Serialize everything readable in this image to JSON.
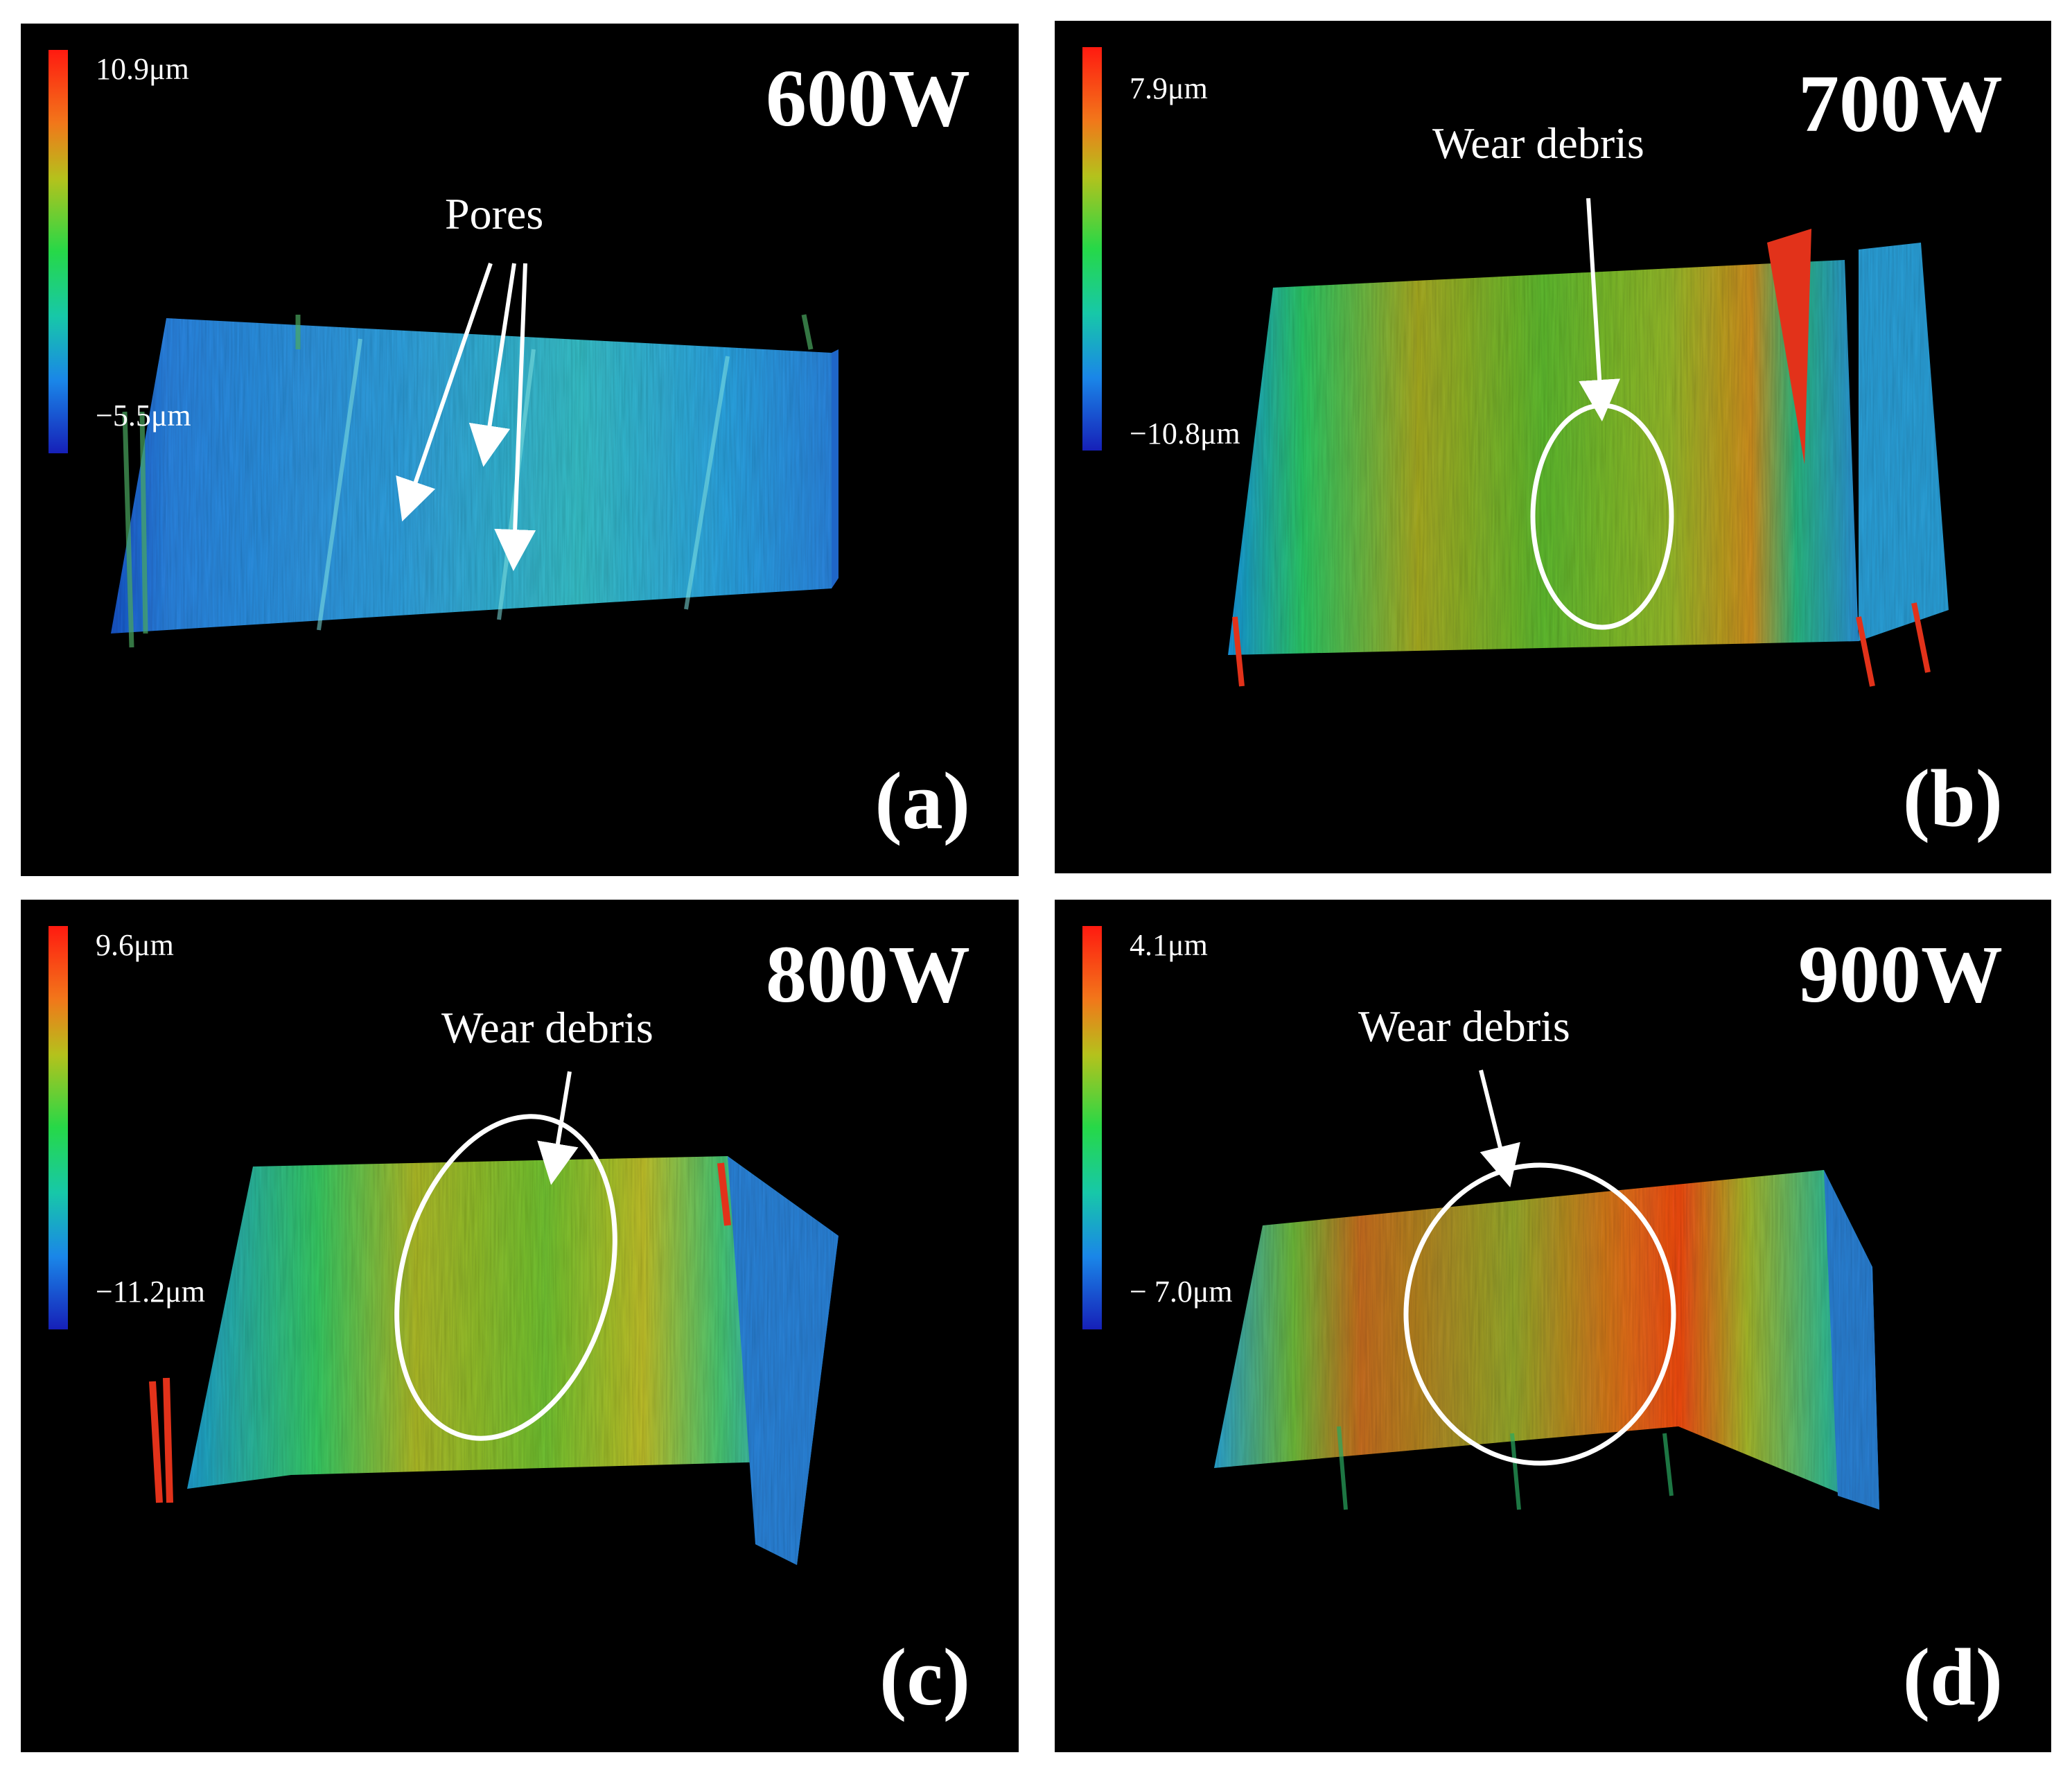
{
  "colors": {
    "background": "#000000",
    "text": "#ffffff",
    "scale_top": "#ff1a10",
    "scale_bottom": "#1620b8"
  },
  "panels": [
    {
      "id": "a",
      "label": "(a)",
      "power": "600W",
      "scale_max": "10.9μm",
      "scale_min": "−5.5μm",
      "annotation": "Pores"
    },
    {
      "id": "b",
      "label": "(b)",
      "power": "700W",
      "scale_max": "7.9μm",
      "scale_min": "−10.8μm",
      "annotation": "Wear debris"
    },
    {
      "id": "c",
      "label": "(c)",
      "power": "800W",
      "scale_max": "9.6μm",
      "scale_min": "−11.2μm",
      "annotation": "Wear debris"
    },
    {
      "id": "d",
      "label": "(d)",
      "power": "900W",
      "scale_max": "4.1μm",
      "scale_min": "− 7.0μm",
      "annotation": "Wear debris"
    }
  ]
}
